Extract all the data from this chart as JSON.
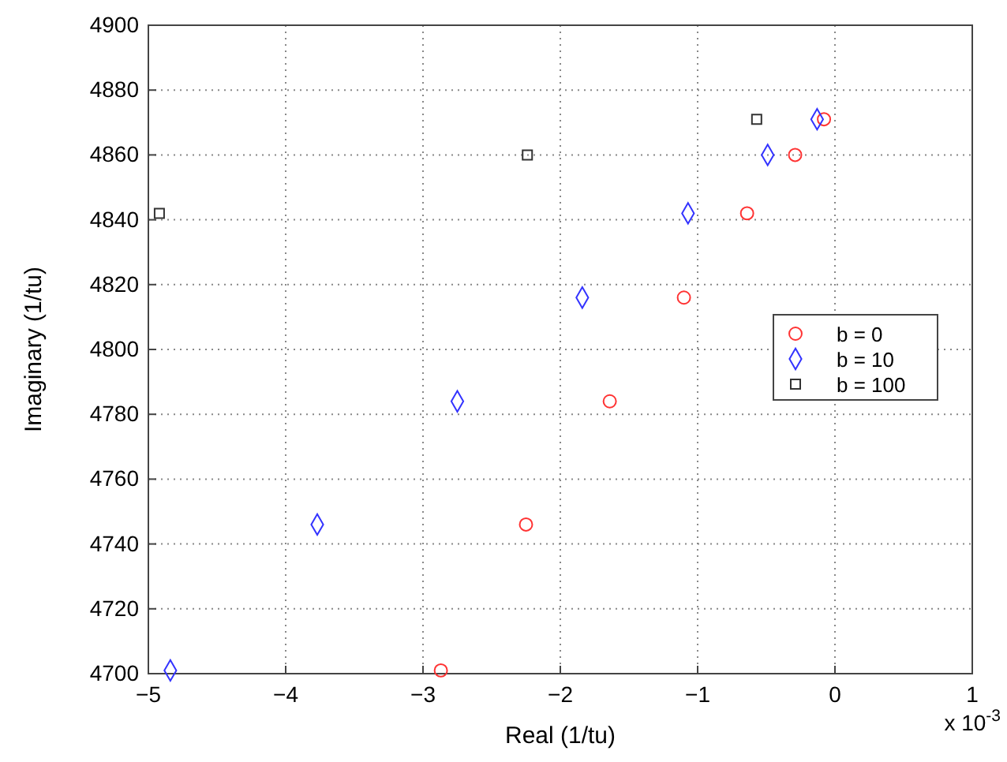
{
  "chart_data": {
    "type": "scatter",
    "xlabel": "Real (1/tu)",
    "ylabel": "Imaginary (1/tu)",
    "xlim": [
      -5,
      1
    ],
    "xticks": [
      -5,
      -4,
      -3,
      -2,
      -1,
      0,
      1
    ],
    "ylim": [
      4700,
      4900
    ],
    "yticks": [
      4700,
      4720,
      4740,
      4760,
      4780,
      4800,
      4820,
      4840,
      4860,
      4880,
      4900
    ],
    "grid": true,
    "legend": "right",
    "annotations": [
      "x 10$^{-3}$"
    ],
    "series": [
      {
        "name": "b = 0",
        "color": "#ff3333",
        "marker": "circle",
        "x": [
          -0.08,
          -0.29,
          -0.64,
          -1.1,
          -1.64,
          -2.25,
          -2.87
        ],
        "values": [
          4871,
          4860,
          4842,
          4816,
          4784,
          4746,
          4701
        ]
      },
      {
        "name": "b = 10",
        "color": "#3333ff",
        "marker": "diamond",
        "x": [
          -0.13,
          -0.49,
          -1.07,
          -1.84,
          -2.75,
          -3.77,
          -4.84
        ],
        "values": [
          4871,
          4860,
          4842,
          4816,
          4784,
          4746,
          4701
        ]
      },
      {
        "name": "b = 100",
        "color": "#333333",
        "marker": "square",
        "x": [
          -0.57,
          -2.24,
          -4.92
        ],
        "values": [
          4871,
          4860,
          4842
        ]
      }
    ]
  }
}
